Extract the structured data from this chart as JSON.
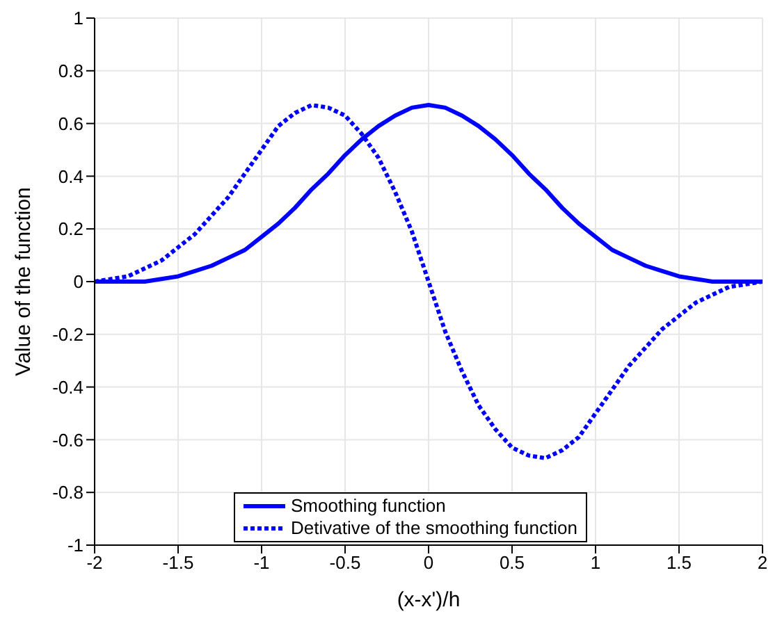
{
  "chart_data": {
    "type": "line",
    "xlabel": "(x-x')/h",
    "ylabel": "Value of the function",
    "x": [
      -2,
      -1.9,
      -1.8,
      -1.7,
      -1.6,
      -1.5,
      -1.4,
      -1.3,
      -1.2,
      -1.1,
      -1,
      -0.9,
      -0.8,
      -0.7,
      -0.6,
      -0.5,
      -0.4,
      -0.3,
      -0.2,
      -0.1,
      0,
      0.1,
      0.2,
      0.3,
      0.4,
      0.5,
      0.6,
      0.7,
      0.8,
      0.9,
      1,
      1.1,
      1.2,
      1.3,
      1.4,
      1.5,
      1.6,
      1.7,
      1.8,
      1.9,
      2
    ],
    "series": [
      {
        "name": "Smoothing function",
        "color": "#0000ff",
        "line_style": "solid",
        "values": [
          0,
          0,
          0,
          0,
          0.01,
          0.02,
          0.04,
          0.06,
          0.09,
          0.12,
          0.17,
          0.22,
          0.28,
          0.35,
          0.41,
          0.48,
          0.54,
          0.59,
          0.63,
          0.66,
          0.67,
          0.66,
          0.63,
          0.59,
          0.54,
          0.48,
          0.41,
          0.35,
          0.28,
          0.22,
          0.17,
          0.12,
          0.09,
          0.06,
          0.04,
          0.02,
          0.01,
          0,
          0,
          0,
          0
        ]
      },
      {
        "name": "Detivative of the smoothing function",
        "color": "#0000ff",
        "line_style": "dotted",
        "values": [
          0,
          0.01,
          0.02,
          0.05,
          0.08,
          0.13,
          0.18,
          0.25,
          0.32,
          0.41,
          0.5,
          0.59,
          0.64,
          0.67,
          0.66,
          0.63,
          0.56,
          0.47,
          0.34,
          0.19,
          0,
          -0.19,
          -0.34,
          -0.47,
          -0.56,
          -0.63,
          -0.66,
          -0.67,
          -0.64,
          -0.59,
          -0.5,
          -0.41,
          -0.32,
          -0.25,
          -0.18,
          -0.13,
          -0.08,
          -0.05,
          -0.02,
          -0.01,
          0
        ]
      }
    ],
    "xlim": [
      -2,
      2
    ],
    "xticks": [
      -2,
      -1.5,
      -1,
      -0.5,
      0,
      0.5,
      1,
      1.5,
      2
    ],
    "ylim": [
      -1,
      1
    ],
    "yticks": [
      -1,
      -0.8,
      -0.6,
      -0.4,
      -0.2,
      0,
      0.2,
      0.4,
      0.6,
      0.8,
      1
    ],
    "grid": true,
    "legend": "bottom",
    "marker": "none"
  }
}
